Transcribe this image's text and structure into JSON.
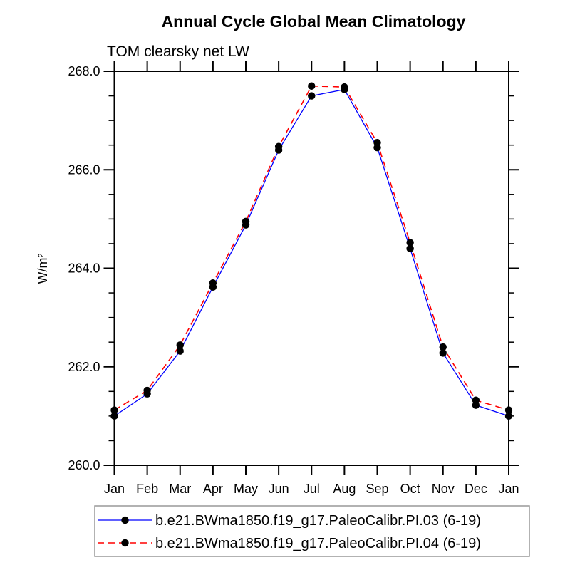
{
  "page": {
    "background": "#ffffff",
    "text_color": "#000000",
    "axis_color": "#000000",
    "legend_border_color": "#999999"
  },
  "chart_data": {
    "type": "line",
    "title": "Annual Cycle Global Mean Climatology",
    "subtitle": "TOM clearsky net LW",
    "ylabel": "W/m²",
    "xlabel": "",
    "categories": [
      "Jan",
      "Feb",
      "Mar",
      "Apr",
      "May",
      "Jun",
      "Jul",
      "Aug",
      "Sep",
      "Oct",
      "Nov",
      "Dec",
      "Jan"
    ],
    "ylim": [
      260.0,
      268.0
    ],
    "ytick_values": [
      260.0,
      262.0,
      264.0,
      266.0,
      268.0
    ],
    "ytick_labels": [
      "260.0",
      "262.0",
      "264.0",
      "266.0",
      "268.0"
    ],
    "ytick_minor_step": 0.5,
    "grid": false,
    "legend_position": "bottom",
    "marker": {
      "shape": "filled-circle",
      "color": "#000000",
      "radius": 5.2
    },
    "series": [
      {
        "name": "b.e21.BWma1850.f19_g17.PaleoCalibr.PI.03 (6-19)",
        "color": "#0000ff",
        "line_style": "solid",
        "values": [
          261.0,
          261.45,
          262.32,
          263.62,
          264.88,
          266.4,
          267.5,
          267.63,
          266.45,
          264.4,
          262.28,
          261.22,
          261.0
        ]
      },
      {
        "name": "b.e21.BWma1850.f19_g17.PaleoCalibr.PI.04 (6-19)",
        "color": "#ff0000",
        "line_style": "dashed",
        "values": [
          261.12,
          261.52,
          262.44,
          263.7,
          264.95,
          266.47,
          267.7,
          267.68,
          266.55,
          264.52,
          262.4,
          261.32,
          261.12
        ]
      }
    ]
  }
}
